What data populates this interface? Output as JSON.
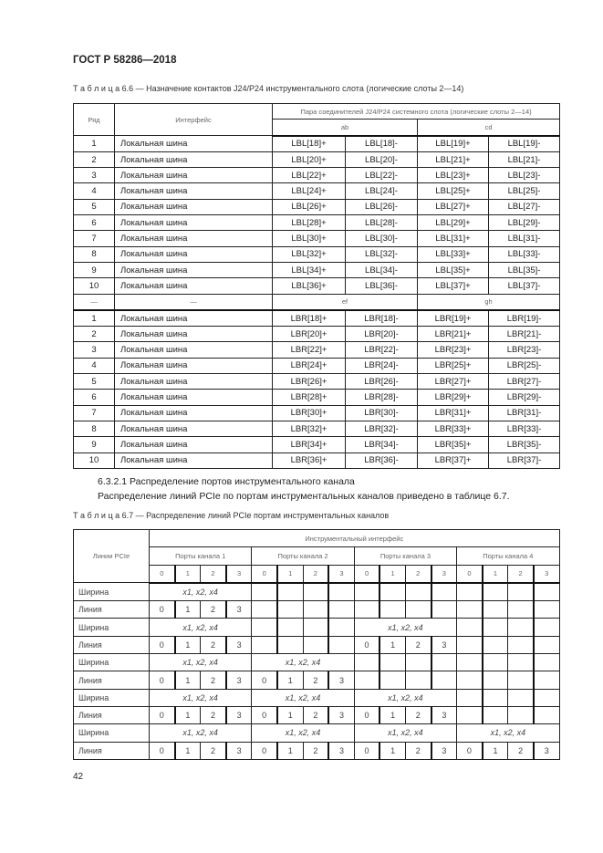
{
  "header": {
    "doc_title": "ГОСТ Р 58286—2018"
  },
  "table66": {
    "caption": "Т а б л и ц а  6.6 — Назначение контактов J24/P24 инструментального слота (логические слоты 2—14)",
    "col_row": "Ряд",
    "col_interface": "Интерфейс",
    "col_pair": "Пара соединителей J24/P24 системного слота (логические слоты 2—14)",
    "group1": [
      "ab",
      "cd"
    ],
    "rows1": [
      [
        "1",
        "Локальная шина",
        "LBL[18]+",
        "LBL[18]-",
        "LBL[19]+",
        "LBL[19]-"
      ],
      [
        "2",
        "Локальная шина",
        "LBL[20]+",
        "LBL[20]-",
        "LBL[21]+",
        "LBL[21]-"
      ],
      [
        "3",
        "Локальная шина",
        "LBL[22]+",
        "LBL[22]-",
        "LBL[23]+",
        "LBL[23]-"
      ],
      [
        "4",
        "Локальная шина",
        "LBL[24]+",
        "LBL[24]-",
        "LBL[25]+",
        "LBL[25]-"
      ],
      [
        "5",
        "Локальная шина",
        "LBL[26]+",
        "LBL[26]-",
        "LBL[27]+",
        "LBL[27]-"
      ],
      [
        "6",
        "Локальная шина",
        "LBL[28]+",
        "LBL[28]-",
        "LBL[29]+",
        "LBL[29]-"
      ],
      [
        "7",
        "Локальная шина",
        "LBL[30]+",
        "LBL[30]-",
        "LBL[31]+",
        "LBL[31]-"
      ],
      [
        "8",
        "Локальная шина",
        "LBL[32]+",
        "LBL[32]-",
        "LBL[33]+",
        "LBL[33]-"
      ],
      [
        "9",
        "Локальная шина",
        "LBL[34]+",
        "LBL[34]-",
        "LBL[35]+",
        "LBL[35]-"
      ],
      [
        "10",
        "Локальная шина",
        "LBL[36]+",
        "LBL[36]-",
        "LBL[37]+",
        "LBL[37]-"
      ]
    ],
    "separator": [
      "—",
      "—",
      "ef",
      "gh"
    ],
    "rows2": [
      [
        "1",
        "Локальная шина",
        "LBR[18]+",
        "LBR[18]-",
        "LBR[19]+",
        "LBR[19]-"
      ],
      [
        "2",
        "Локальная шина",
        "LBR[20]+",
        "LBR[20]-",
        "LBR[21]+",
        "LBR[21]-"
      ],
      [
        "3",
        "Локальная шина",
        "LBR[22]+",
        "LBR[22]-",
        "LBR[23]+",
        "LBR[23]-"
      ],
      [
        "4",
        "Локальная шина",
        "LBR[24]+",
        "LBR[24]-",
        "LBR[25]+",
        "LBR[25]-"
      ],
      [
        "5",
        "Локальная шина",
        "LBR[26]+",
        "LBR[26]-",
        "LBR[27]+",
        "LBR[27]-"
      ],
      [
        "6",
        "Локальная шина",
        "LBR[28]+",
        "LBR[28]-",
        "LBR[29]+",
        "LBR[29]-"
      ],
      [
        "7",
        "Локальная шина",
        "LBR[30]+",
        "LBR[30]-",
        "LBR[31]+",
        "LBR[31]-"
      ],
      [
        "8",
        "Локальная шина",
        "LBR[32]+",
        "LBR[32]-",
        "LBR[33]+",
        "LBR[33]-"
      ],
      [
        "9",
        "Локальная шина",
        "LBR[34]+",
        "LBR[34]-",
        "LBR[35]+",
        "LBR[35]-"
      ],
      [
        "10",
        "Локальная шина",
        "LBR[36]+",
        "LBR[36]-",
        "LBR[37]+",
        "LBR[37]-"
      ]
    ]
  },
  "section": {
    "heading": "6.3.2.1 Распределение портов инструментального канала",
    "text": "Распределение линий PCIe по портам инструментальных каналов приведено в таблице 6.7."
  },
  "table67": {
    "caption": "Т а б л и ц а  6.7 — Распределение линий PCIe портам инструментальных каналов",
    "col_lines": "Линии PCIe",
    "col_interface": "Инструментальный интерфейс",
    "channels": [
      "Порты канала 1",
      "Порты канала 2",
      "Порты канала 3",
      "Порты канала 4"
    ],
    "port_numbers": [
      "0",
      "1",
      "2",
      "3"
    ],
    "width_label": "Ширина",
    "line_label": "Линия",
    "width_value": "x1, x2, x4",
    "configs": [
      [
        1,
        0,
        0,
        0
      ],
      [
        1,
        0,
        1,
        0
      ],
      [
        1,
        1,
        0,
        0
      ],
      [
        1,
        1,
        1,
        0
      ],
      [
        1,
        1,
        1,
        1
      ]
    ]
  },
  "footer": {
    "page_number": "42"
  }
}
